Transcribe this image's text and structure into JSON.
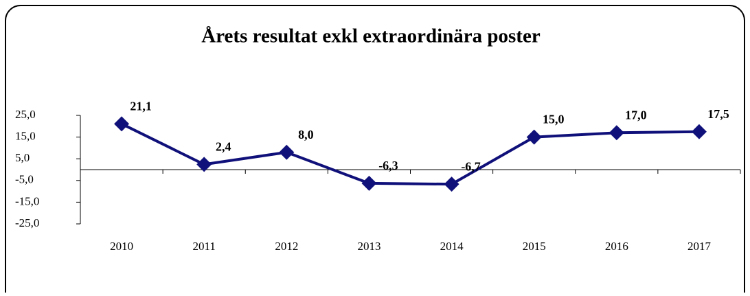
{
  "chart_data": {
    "type": "line",
    "title": "Årets resultat exkl extraordinära poster",
    "categories": [
      "2010",
      "2011",
      "2012",
      "2013",
      "2014",
      "2015",
      "2016",
      "2017"
    ],
    "series": [
      {
        "name": "Årets resultat",
        "color": "#10107a",
        "values": [
          21.1,
          2.4,
          8.0,
          -6.3,
          -6.7,
          15.0,
          17.0,
          17.5
        ],
        "value_labels": [
          "21,1",
          "2,4",
          "8,0",
          "-6,3",
          "-6,7",
          "15,0",
          "17,0",
          "17,5"
        ]
      }
    ],
    "ylim": [
      -25,
      25
    ],
    "yticks": [
      {
        "value": -25,
        "label": "-25,0"
      },
      {
        "value": -15,
        "label": "-15,0"
      },
      {
        "value": -5,
        "label": "-5,0"
      },
      {
        "value": 5,
        "label": "5,0"
      },
      {
        "value": 15,
        "label": "15,0"
      },
      {
        "value": 25,
        "label": "25,0"
      }
    ],
    "grid": false
  }
}
